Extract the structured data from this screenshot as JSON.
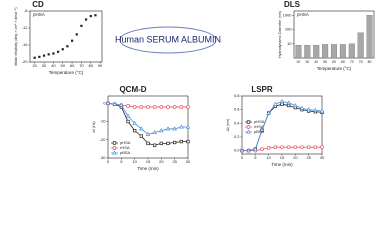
{
  "label": "Human SERUM ALBUMIN",
  "chart_data": [
    {
      "type": "scatter",
      "title": "CD",
      "annotation": "pHSA",
      "xlabel": "Temperature (°C)",
      "ylabel": "Molar ellipticity (deg × cm² × dmol⁻¹)",
      "color": "#222222",
      "marker": "square",
      "x": [
        20,
        25,
        30,
        35,
        40,
        45,
        50,
        55,
        60,
        65,
        70,
        75,
        80,
        85
      ],
      "values": [
        -19,
        -18.8,
        -18.5,
        -18.2,
        -18,
        -17.6,
        -17,
        -16.3,
        -15,
        -13.5,
        -11.5,
        -10,
        -9.2,
        -9
      ],
      "xlim": [
        15,
        92
      ],
      "xticks": [
        20,
        30,
        40,
        50,
        60,
        70,
        80,
        90
      ],
      "ylim": [
        -20,
        -8
      ],
      "yticks": [
        -20,
        -16,
        -12,
        -8
      ]
    },
    {
      "type": "bar",
      "title": "DLS",
      "annotation": "pHSA",
      "xlabel": "Temperature (°C)",
      "ylabel": "Hydrodynamic Diameter (nm)",
      "color": "#a8a8a8",
      "log_scale": true,
      "categories": [
        "20",
        "30",
        "40",
        "50",
        "60",
        "65",
        "70",
        "75",
        "80"
      ],
      "values": [
        8,
        8,
        8,
        9,
        9,
        9,
        10,
        60,
        1000
      ],
      "ylim": [
        1,
        2000
      ],
      "yticks": [
        10,
        100,
        1000
      ]
    },
    {
      "type": "line",
      "title": "QCM-D",
      "xlabel": "Time (min)",
      "ylabel": "Δf (Hz)",
      "legend": "lower left",
      "x": [
        0,
        2.5,
        5,
        7.5,
        10,
        12.5,
        15,
        17.5,
        20,
        22.5,
        25,
        27.5,
        30
      ],
      "series": [
        {
          "name": "pHSA",
          "color": "#222222",
          "marker": "square",
          "values": [
            0,
            -0.5,
            -2,
            -10,
            -15,
            -18,
            -22,
            -23,
            -22,
            -22,
            -21.5,
            -21,
            -21
          ]
        },
        {
          "name": "rHSA",
          "color": "#e8506a",
          "marker": "circle",
          "values": [
            0,
            -0.5,
            -1,
            -1.5,
            -2,
            -2,
            -2,
            -2,
            -2,
            -2,
            -2,
            -2,
            -2
          ]
        },
        {
          "name": "pBSA",
          "color": "#4a8fd8",
          "marker": "triangle",
          "values": [
            0,
            -0.5,
            -1,
            -7,
            -11,
            -14,
            -17,
            -16,
            -15,
            -14,
            -14,
            -13,
            -13
          ]
        }
      ],
      "xlim": [
        0,
        30
      ],
      "xticks": [
        0,
        5,
        10,
        15,
        20,
        25,
        30
      ],
      "ylim": [
        -30,
        4
      ],
      "yticks": [
        0,
        -10,
        -20,
        -30
      ]
    },
    {
      "type": "line",
      "title": "LSPR",
      "xlabel": "Time (min)",
      "ylabel": "Δλ (nm)",
      "legend": "center left",
      "x": [
        0,
        2.5,
        5,
        7.5,
        10,
        12.5,
        15,
        17.5,
        20,
        22.5,
        25,
        27.5,
        30
      ],
      "series": [
        {
          "name": "pHSA",
          "color": "#222222",
          "marker": "square",
          "values": [
            0,
            0,
            0.02,
            0.3,
            0.55,
            0.65,
            0.68,
            0.66,
            0.63,
            0.6,
            0.58,
            0.57,
            0.56
          ]
        },
        {
          "name": "rHSA",
          "color": "#e8506a",
          "marker": "circle",
          "values": [
            0,
            0,
            0,
            0.02,
            0.04,
            0.05,
            0.05,
            0.05,
            0.05,
            0.05,
            0.05,
            0.05,
            0.05
          ]
        },
        {
          "name": "pBSA",
          "color": "#4a8fd8",
          "marker": "triangle",
          "values": [
            0,
            0,
            0.02,
            0.3,
            0.55,
            0.68,
            0.72,
            0.7,
            0.66,
            0.62,
            0.6,
            0.59,
            0.58
          ]
        }
      ],
      "xlim": [
        0,
        30
      ],
      "xticks": [
        0,
        5,
        10,
        15,
        20,
        25,
        30
      ],
      "ylim": [
        -0.05,
        0.8
      ],
      "yticks": [
        {
          "value": 0,
          "label": "0.0"
        },
        0.2,
        0.4,
        0.6,
        0.8
      ]
    }
  ]
}
